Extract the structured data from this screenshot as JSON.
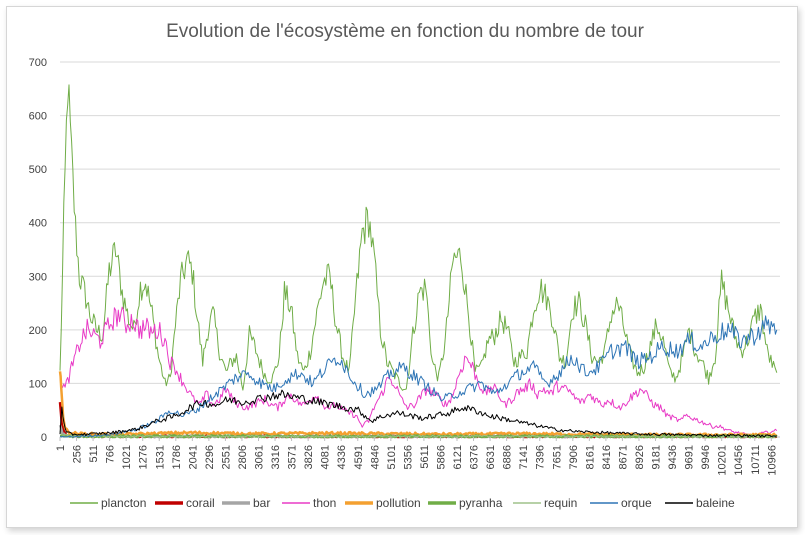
{
  "chart_data": {
    "type": "line",
    "title": "Evolution de l'écosystème en fonction du nombre de tour",
    "xlabel": "",
    "ylabel": "",
    "ylim": [
      0,
      700
    ],
    "yticks": [
      0,
      100,
      200,
      300,
      400,
      500,
      600,
      700
    ],
    "xlim": [
      1,
      11100
    ],
    "xticks": [
      1,
      256,
      511,
      766,
      1021,
      1276,
      1531,
      1786,
      2041,
      2296,
      2551,
      2806,
      3061,
      3316,
      3571,
      3826,
      4081,
      4336,
      4591,
      4846,
      5101,
      5356,
      5611,
      5866,
      6121,
      6376,
      6631,
      6886,
      7141,
      7396,
      7651,
      7906,
      8161,
      8416,
      8671,
      8926,
      9181,
      9436,
      9691,
      9946,
      10201,
      10456,
      10711,
      10966
    ],
    "grid": true,
    "legend_position": "bottom",
    "series": [
      {
        "name": "plancton",
        "color": "#70ad47",
        "width": 1,
        "x": [
          1,
          60,
          120,
          180,
          240,
          300,
          380,
          460,
          560,
          660,
          760,
          860,
          960,
          1060,
          1140,
          1240,
          1320,
          1420,
          1520,
          1620,
          1700,
          1780,
          1860,
          1960,
          2040,
          2100,
          2200,
          2280,
          2360,
          2460,
          2560,
          2640,
          2720,
          2820,
          2920,
          3000,
          3080,
          3180,
          3280,
          3380,
          3460,
          3560,
          3660,
          3760,
          3860,
          3960,
          4060,
          4160,
          4260,
          4360,
          4460,
          4560,
          4660,
          4760,
          4846,
          4940,
          5040,
          5140,
          5240,
          5340,
          5440,
          5540,
          5640,
          5740,
          5840,
          5940,
          6060,
          6180,
          6300,
          6400,
          6500,
          6600,
          6700,
          6800,
          6900,
          7000,
          7100,
          7200,
          7300,
          7400,
          7500,
          7600,
          7700,
          7800,
          7900,
          8000,
          8100,
          8200,
          8300,
          8400,
          8500,
          8600,
          8700,
          8800,
          8900,
          9000,
          9100,
          9200,
          9300,
          9400,
          9500,
          9600,
          9700,
          9800,
          9900,
          10000,
          10100,
          10200,
          10300,
          10400,
          10500,
          10600,
          10700,
          10800,
          10900,
          11000,
          11050
        ],
        "y": [
          120,
          400,
          660,
          520,
          390,
          300,
          270,
          230,
          200,
          190,
          310,
          350,
          270,
          220,
          200,
          280,
          290,
          230,
          150,
          100,
          110,
          210,
          290,
          330,
          310,
          240,
          140,
          200,
          230,
          160,
          120,
          140,
          150,
          90,
          190,
          170,
          140,
          110,
          110,
          150,
          270,
          240,
          150,
          120,
          160,
          230,
          290,
          300,
          210,
          150,
          120,
          260,
          380,
          410,
          330,
          200,
          140,
          120,
          100,
          90,
          190,
          270,
          280,
          140,
          110,
          180,
          330,
          340,
          230,
          120,
          130,
          180,
          190,
          220,
          200,
          140,
          150,
          160,
          240,
          280,
          260,
          220,
          150,
          140,
          240,
          250,
          210,
          150,
          140,
          160,
          230,
          250,
          200,
          150,
          120,
          130,
          170,
          210,
          180,
          120,
          110,
          150,
          200,
          160,
          140,
          110,
          150,
          290,
          240,
          190,
          160,
          180,
          220,
          240,
          160,
          130,
          120
        ]
      },
      {
        "name": "corail",
        "color": "#c00000",
        "width": 2.5,
        "x": [
          1,
          30,
          60,
          100,
          200,
          400,
          600,
          800,
          1000,
          2000,
          4000,
          6000,
          8000,
          10000,
          11050
        ],
        "y": [
          60,
          25,
          8,
          4,
          2,
          2,
          1,
          1,
          1,
          1,
          1,
          1,
          1,
          1,
          1
        ]
      },
      {
        "name": "bar",
        "color": "#a5a5a5",
        "width": 2.5,
        "x": [
          1,
          40,
          100,
          300,
          600,
          1000,
          3000,
          6000,
          9000,
          11050
        ],
        "y": [
          20,
          8,
          3,
          2,
          2,
          1,
          1,
          1,
          1,
          1
        ]
      },
      {
        "name": "thon",
        "color": "#e83bc6",
        "width": 1,
        "x": [
          1,
          80,
          160,
          240,
          320,
          420,
          520,
          620,
          720,
          820,
          920,
          1020,
          1120,
          1220,
          1320,
          1420,
          1520,
          1620,
          1700,
          1780,
          1860,
          1960,
          2060,
          2160,
          2260,
          2360,
          2460,
          2560,
          2660,
          2760,
          2860,
          2960,
          3060,
          3160,
          3260,
          3360,
          3460,
          3560,
          3660,
          3760,
          3860,
          3960,
          4060,
          4160,
          4260,
          4360,
          4460,
          4560,
          4660,
          4760,
          4860,
          4960,
          5060,
          5160,
          5260,
          5360,
          5460,
          5560,
          5660,
          5760,
          5860,
          5960,
          6060,
          6160,
          6260,
          6360,
          6460,
          6560,
          6660,
          6760,
          6860,
          6960,
          7060,
          7160,
          7260,
          7360,
          7460,
          7560,
          7660,
          7760,
          7860,
          7960,
          8060,
          8160,
          8260,
          8360,
          8460,
          8560,
          8660,
          8760,
          8860,
          8960,
          9060,
          9160,
          9260,
          9360,
          9460,
          9560,
          9660,
          9760,
          9860,
          9960,
          10060,
          10160,
          10260,
          10360,
          10460,
          10560,
          10660,
          10760,
          10860,
          10960,
          11050
        ],
        "y": [
          110,
          90,
          120,
          150,
          180,
          200,
          190,
          180,
          200,
          220,
          230,
          210,
          220,
          200,
          205,
          195,
          200,
          180,
          140,
          130,
          110,
          90,
          70,
          60,
          80,
          60,
          70,
          90,
          70,
          60,
          55,
          60,
          65,
          70,
          60,
          55,
          70,
          80,
          65,
          60,
          70,
          80,
          60,
          55,
          60,
          50,
          45,
          40,
          20,
          30,
          60,
          80,
          110,
          100,
          70,
          55,
          60,
          75,
          90,
          80,
          70,
          60,
          80,
          120,
          150,
          130,
          100,
          80,
          95,
          80,
          60,
          70,
          85,
          90,
          100,
          80,
          90,
          80,
          95,
          90,
          85,
          70,
          65,
          80,
          70,
          60,
          70,
          60,
          55,
          70,
          80,
          90,
          75,
          60,
          55,
          40,
          35,
          30,
          40,
          35,
          30,
          25,
          20,
          20,
          15,
          10,
          8,
          5,
          3,
          5,
          8,
          10,
          12
        ]
      },
      {
        "name": "pollution",
        "color": "#f4a030",
        "width": 2.5,
        "x": [
          1,
          20,
          50,
          80,
          150,
          300,
          600,
          1000,
          2000,
          3000,
          4000,
          5000,
          6000,
          7000,
          8000,
          9000,
          10000,
          11050
        ],
        "y": [
          120,
          100,
          40,
          15,
          8,
          6,
          5,
          5,
          8,
          6,
          7,
          6,
          5,
          6,
          5,
          4,
          4,
          4
        ]
      },
      {
        "name": "pyranha",
        "color": "#70ad47",
        "width": 2.5,
        "x": [
          1,
          60,
          200,
          600,
          1000,
          3000,
          6000,
          9000,
          11050
        ],
        "y": [
          2,
          2,
          1,
          1,
          1,
          1,
          1,
          1,
          1
        ]
      },
      {
        "name": "requin",
        "color": "#9fc28a",
        "width": 1,
        "x": [
          1,
          40,
          100,
          300,
          600,
          1000,
          3000,
          6000,
          9000,
          11050
        ],
        "y": [
          10,
          5,
          3,
          2,
          2,
          1,
          1,
          1,
          1,
          1
        ]
      },
      {
        "name": "orque",
        "color": "#2e75b6",
        "width": 1,
        "x": [
          1,
          200,
          400,
          800,
          1200,
          1500,
          1700,
          1900,
          2100,
          2300,
          2500,
          2700,
          2900,
          3100,
          3300,
          3500,
          3700,
          3900,
          4100,
          4300,
          4500,
          4700,
          4900,
          5100,
          5300,
          5500,
          5700,
          5900,
          6100,
          6300,
          6500,
          6700,
          6900,
          7100,
          7300,
          7500,
          7700,
          7900,
          8100,
          8300,
          8500,
          8700,
          8900,
          9100,
          9300,
          9500,
          9700,
          9900,
          10100,
          10300,
          10500,
          10700,
          10900,
          11050
        ],
        "y": [
          0,
          0,
          2,
          5,
          15,
          30,
          50,
          40,
          50,
          70,
          90,
          110,
          120,
          100,
          90,
          110,
          120,
          100,
          130,
          150,
          110,
          80,
          90,
          120,
          130,
          110,
          90,
          70,
          80,
          90,
          100,
          80,
          100,
          120,
          130,
          100,
          120,
          150,
          120,
          130,
          160,
          170,
          140,
          150,
          170,
          160,
          180,
          170,
          190,
          200,
          180,
          190,
          210,
          200
        ]
      },
      {
        "name": "baleine",
        "color": "#000000",
        "width": 1,
        "x": [
          1,
          30,
          60,
          100,
          200,
          400,
          800,
          1200,
          1500,
          1800,
          2000,
          2200,
          2400,
          2600,
          2800,
          3000,
          3200,
          3400,
          3600,
          3800,
          4000,
          4200,
          4400,
          4600,
          4800,
          5000,
          5200,
          5400,
          5600,
          5800,
          6000,
          6200,
          6400,
          6600,
          6800,
          7000,
          7200,
          7400,
          7600,
          7800,
          8000,
          8400,
          8800,
          9200,
          9600,
          10000,
          10400,
          10800,
          11050
        ],
        "y": [
          5,
          60,
          25,
          8,
          5,
          5,
          8,
          15,
          30,
          40,
          55,
          65,
          60,
          70,
          65,
          70,
          75,
          80,
          75,
          70,
          65,
          60,
          55,
          50,
          30,
          40,
          45,
          40,
          35,
          40,
          45,
          55,
          50,
          40,
          35,
          30,
          25,
          20,
          15,
          12,
          10,
          8,
          6,
          5,
          4,
          3,
          3,
          2,
          2
        ]
      }
    ]
  }
}
